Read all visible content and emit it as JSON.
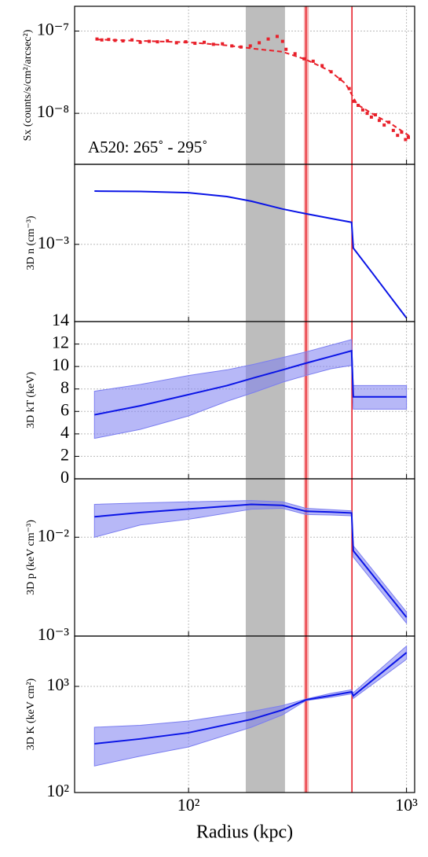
{
  "chart_data": [
    {
      "type": "line",
      "ylabel": "Sx (counts/s/cm²/arcsec²)",
      "annotation": "A520: 265˚ - 295˚",
      "xlog": true,
      "ylog": true,
      "grid": true,
      "xlim": [
        30,
        1090
      ],
      "xticks": [
        100,
        1000
      ],
      "ylim": [
        2.4e-09,
        2e-07
      ],
      "yticks": [
        {
          "value": 1e-07,
          "label": "10⁻⁷"
        },
        {
          "value": 1e-08,
          "label": "10⁻⁸"
        }
      ],
      "vspans": [
        {
          "range": [
            183,
            277
          ],
          "color": "#bdbdbd"
        },
        {
          "range": [
            338,
            356
          ],
          "color": "#f6b3b3"
        }
      ],
      "vlines": [
        {
          "x": 346,
          "color": "#e8202a"
        },
        {
          "x": 562,
          "color": "#e8202a"
        }
      ],
      "series": [
        {
          "style": "markers",
          "color": "#e8202a",
          "x": [
            38,
            40,
            43,
            46,
            50,
            55,
            60,
            66,
            72,
            80,
            88,
            97,
            107,
            118,
            130,
            143,
            158,
            174,
            192,
            211,
            232,
            255,
            270,
            280,
            308,
            339,
            373,
            410,
            451,
            496,
            546,
            575,
            600,
            630,
            660,
            690,
            720,
            750,
            790,
            830,
            870,
            910,
            950,
            990,
            1020
          ],
          "values": [
            8e-08,
            7.8e-08,
            7.9e-08,
            7.7e-08,
            7.6e-08,
            7.8e-08,
            7.3e-08,
            7.5e-08,
            7.4e-08,
            7.6e-08,
            7.2e-08,
            7.4e-08,
            7.1e-08,
            7.3e-08,
            6.9e-08,
            7e-08,
            6.6e-08,
            6.4e-08,
            6.6e-08,
            7.2e-08,
            8e-08,
            8.6e-08,
            7.5e-08,
            6e-08,
            5.3e-08,
            4.6e-08,
            4.3e-08,
            3.8e-08,
            3.2e-08,
            2.6e-08,
            2e-08,
            1.4e-08,
            1.25e-08,
            1.1e-08,
            1e-08,
            9e-09,
            9.6e-09,
            8.2e-09,
            7.2e-09,
            7.8e-09,
            6.2e-09,
            5.4e-09,
            5.9e-09,
            4.8e-09,
            5.1e-09
          ]
        },
        {
          "style": "dashed",
          "color": "#e8202a",
          "x": [
            38,
            60,
            100,
            150,
            200,
            270,
            346,
            443,
            525,
            560,
            594,
            730,
            860,
            1000,
            1030
          ],
          "values": [
            7.9e-08,
            7.6e-08,
            7.3e-08,
            6.7e-08,
            6.1e-08,
            5.6e-08,
            4.5e-08,
            3.3e-08,
            2.3e-08,
            1.7e-08,
            1.28e-08,
            9.2e-09,
            7.3e-09,
            5.6e-09,
            5.3e-09
          ]
        }
      ]
    },
    {
      "type": "line",
      "ylabel": "3D n (cm⁻³)",
      "xlog": true,
      "ylog": true,
      "grid": true,
      "xlim": [
        30,
        1090
      ],
      "xticks": [
        100,
        1000
      ],
      "ylim": [
        0.00022,
        0.0048
      ],
      "yticks": [
        {
          "value": 0.001,
          "label": "10⁻³"
        }
      ],
      "vspans": [
        {
          "range": [
            183,
            277
          ],
          "color": "#bdbdbd"
        },
        {
          "range": [
            338,
            356
          ],
          "color": "#f6b3b3"
        }
      ],
      "vlines": [
        {
          "x": 346,
          "color": "#e8202a"
        },
        {
          "x": 562,
          "color": "#e8202a"
        }
      ],
      "series": [
        {
          "style": "solid",
          "color": "#0a14e6",
          "x": [
            37,
            60,
            100,
            150,
            194,
            270,
            346,
            450,
            560,
            570,
            700,
            850,
            1000
          ],
          "values": [
            0.00284,
            0.00282,
            0.00275,
            0.00255,
            0.00233,
            0.002,
            0.00182,
            0.00166,
            0.00154,
            0.00093,
            0.000565,
            0.000351,
            0.000236
          ]
        }
      ]
    },
    {
      "type": "line",
      "ylabel": "3D kT (keV)",
      "xlog": true,
      "ylog": false,
      "grid": true,
      "xlim": [
        30,
        1090
      ],
      "xticks": [
        100,
        1000
      ],
      "ylim": [
        0,
        14
      ],
      "yticks": [
        0,
        2,
        4,
        6,
        8,
        10,
        12,
        14
      ],
      "vspans": [
        {
          "range": [
            183,
            277
          ],
          "color": "#bdbdbd"
        },
        {
          "range": [
            338,
            356
          ],
          "color": "#f6b3b3"
        }
      ],
      "vlines": [
        {
          "x": 346,
          "color": "#e8202a"
        },
        {
          "x": 562,
          "color": "#e8202a"
        }
      ],
      "series": [
        {
          "style": "solid",
          "color": "#0a14e6",
          "band_color": "#7b7ef0",
          "x": [
            37,
            60,
            100,
            150,
            200,
            270,
            346,
            450,
            560,
            570,
            1000
          ],
          "values": [
            5.7,
            6.5,
            7.5,
            8.3,
            9.0,
            9.7,
            10.3,
            10.9,
            11.4,
            7.3,
            7.3
          ],
          "lower": [
            3.6,
            4.4,
            5.6,
            6.9,
            7.7,
            8.6,
            9.2,
            9.8,
            10.1,
            6.2,
            6.2
          ],
          "upper": [
            7.8,
            8.4,
            9.2,
            9.7,
            10.2,
            10.8,
            11.3,
            11.9,
            12.4,
            8.3,
            8.3
          ]
        }
      ]
    },
    {
      "type": "line",
      "ylabel": "3D p (keV cm⁻³)",
      "xlog": true,
      "ylog": true,
      "grid": true,
      "xlim": [
        30,
        1090
      ],
      "xticks": [
        100,
        1000
      ],
      "ylim": [
        0.001,
        0.039
      ],
      "yticks": [
        {
          "value": 0.01,
          "label": "10⁻²"
        },
        {
          "value": 0.001,
          "label": "10⁻³"
        }
      ],
      "vspans": [
        {
          "range": [
            183,
            277
          ],
          "color": "#bdbdbd"
        },
        {
          "range": [
            338,
            356
          ],
          "color": "#f6b3b3"
        }
      ],
      "vlines": [
        {
          "x": 346,
          "color": "#e8202a"
        },
        {
          "x": 562,
          "color": "#e8202a"
        }
      ],
      "series": [
        {
          "style": "solid",
          "color": "#0a14e6",
          "band_color": "#7b7ef0",
          "x": [
            37,
            60,
            100,
            194,
            270,
            346,
            450,
            560,
            570,
            1000
          ],
          "values": [
            0.0161,
            0.0178,
            0.0193,
            0.0215,
            0.021,
            0.0183,
            0.018,
            0.0176,
            0.0073,
            0.00155
          ],
          "lower": [
            0.01,
            0.0133,
            0.0152,
            0.0192,
            0.0196,
            0.017,
            0.0168,
            0.0165,
            0.0063,
            0.00135
          ],
          "upper": [
            0.0215,
            0.0222,
            0.0228,
            0.0235,
            0.0228,
            0.0196,
            0.019,
            0.0185,
            0.0082,
            0.00175
          ]
        }
      ]
    },
    {
      "type": "line",
      "ylabel": "3D K (keV cm²)",
      "xlabel": "Radius (kpc)",
      "xlog": true,
      "ylog": true,
      "grid": true,
      "xlim": [
        30,
        1090
      ],
      "xticks": [
        {
          "value": 100,
          "label": "10²"
        },
        {
          "value": 1000,
          "label": "10³"
        }
      ],
      "ylim": [
        100,
        2980
      ],
      "yticks": [
        {
          "value": 1000,
          "label": "10³"
        },
        {
          "value": 100,
          "label": "10²"
        }
      ],
      "vspans": [
        {
          "range": [
            183,
            277
          ],
          "color": "#bdbdbd"
        },
        {
          "range": [
            338,
            356
          ],
          "color": "#f6b3b3"
        }
      ],
      "vlines": [
        {
          "x": 346,
          "color": "#e8202a"
        },
        {
          "x": 562,
          "color": "#e8202a"
        }
      ],
      "series": [
        {
          "style": "solid",
          "color": "#0a14e6",
          "band_color": "#7b7ef0",
          "x": [
            37,
            60,
            100,
            194,
            270,
            346,
            450,
            560,
            570,
            1000
          ],
          "values": [
            288,
            320,
            366,
            489,
            600,
            748,
            820,
            887,
            815,
            2080
          ],
          "lower": [
            178,
            220,
            269,
            412,
            540,
            735,
            790,
            850,
            770,
            1800
          ],
          "upper": [
            412,
            430,
            472,
            579,
            660,
            760,
            860,
            930,
            870,
            2400
          ]
        }
      ]
    }
  ]
}
